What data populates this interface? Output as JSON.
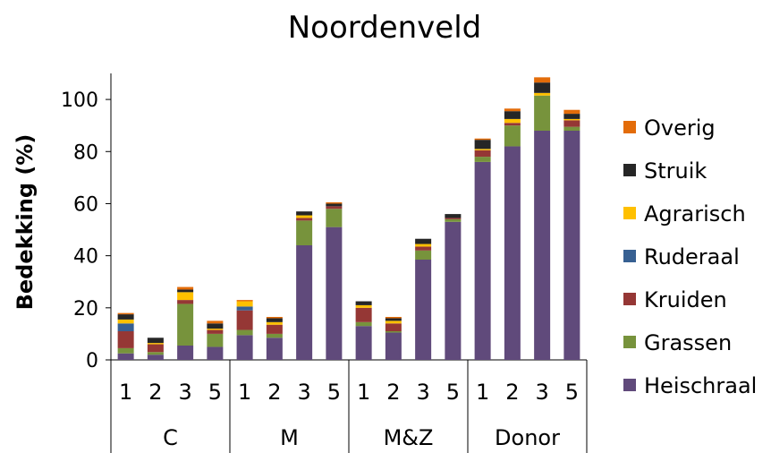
{
  "chart_data": {
    "type": "bar",
    "stacked": true,
    "title": "Noordenveld",
    "ylabel": "Bedekking (%)",
    "xlabel": "",
    "ylim": [
      0,
      110
    ],
    "yticks": [
      0,
      20,
      40,
      60,
      80,
      100
    ],
    "grid": false,
    "legend_position": "right",
    "groups": [
      {
        "name": "C",
        "categories": [
          "1",
          "2",
          "3",
          "5"
        ]
      },
      {
        "name": "M",
        "categories": [
          "1",
          "2",
          "3",
          "5"
        ]
      },
      {
        "name": "M&Z",
        "categories": [
          "1",
          "2",
          "3",
          "5"
        ]
      },
      {
        "name": "Donor",
        "categories": [
          "1",
          "2",
          "3",
          "5"
        ]
      }
    ],
    "series": [
      {
        "name": "Heischraal",
        "color": "#604a7b",
        "values": [
          2.5,
          2,
          5.5,
          5,
          9.5,
          8.5,
          44,
          51,
          13,
          10.5,
          38.5,
          53,
          76,
          82,
          88,
          88
        ]
      },
      {
        "name": "Grassen",
        "color": "#77933c",
        "values": [
          2,
          1,
          16,
          5,
          2,
          1.5,
          9.5,
          7,
          1.5,
          0.5,
          3.5,
          1,
          2,
          8,
          13.5,
          1.5
        ]
      },
      {
        "name": "Kruiden",
        "color": "#953735",
        "values": [
          6.5,
          3,
          1.5,
          1.5,
          7.5,
          3.5,
          1,
          1,
          5.5,
          3,
          1.5,
          0.5,
          2.5,
          1,
          0,
          2.5
        ]
      },
      {
        "name": "Ruderaal",
        "color": "#376092",
        "values": [
          3,
          0,
          0,
          0,
          1.5,
          0,
          0,
          0,
          0,
          0,
          0,
          0,
          0,
          0,
          0,
          0
        ]
      },
      {
        "name": "Agrarisch",
        "color": "#ffc000",
        "values": [
          1.5,
          0.5,
          3,
          0.5,
          2,
          1,
          1,
          0,
          1,
          1,
          1,
          0,
          0.5,
          1.5,
          1,
          0.5
        ]
      },
      {
        "name": "Struik",
        "color": "#262626",
        "values": [
          2,
          2,
          1,
          2,
          0,
          1.5,
          1.5,
          1,
          1.5,
          1,
          2,
          1.5,
          3.5,
          3,
          4,
          2
        ]
      },
      {
        "name": "Overig",
        "color": "#e36c09",
        "values": [
          0.5,
          0,
          1,
          1,
          0.5,
          0.5,
          0,
          0.5,
          0,
          0.5,
          0,
          0,
          0.5,
          1,
          2,
          1.5
        ]
      }
    ]
  }
}
